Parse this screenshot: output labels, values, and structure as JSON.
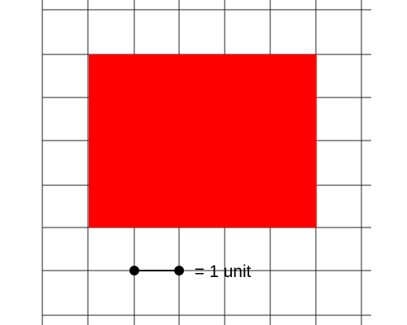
{
  "grid": {
    "columns": 8,
    "rows": 7,
    "line_color": "#222222",
    "background_color": "#ffffff"
  },
  "shaded_rectangle": {
    "width_units": 5,
    "height_units": 4,
    "fill_color": "#ff0000"
  },
  "legend": {
    "label": "= 1 unit",
    "segment_length_units": 1,
    "marker_color": "#000000"
  }
}
